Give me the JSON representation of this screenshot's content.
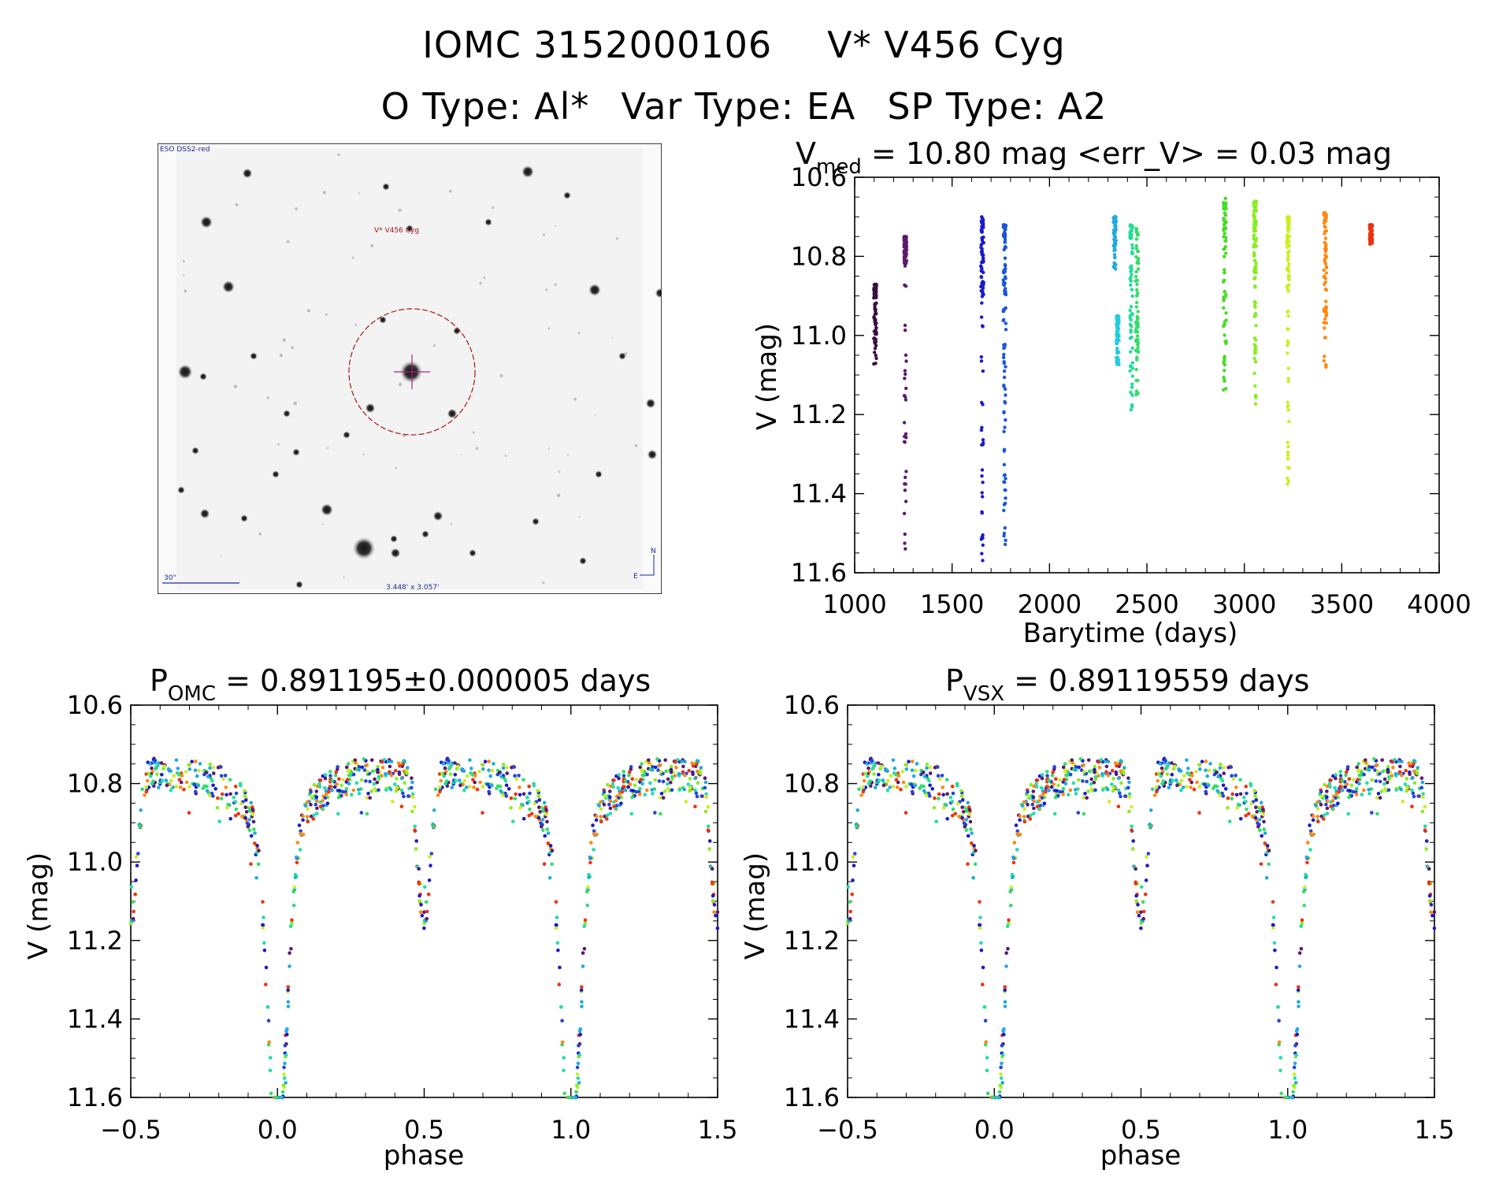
{
  "header": {
    "object_id": "IOMC 3152000106",
    "star_name": "V* V456 Cyg",
    "o_type": "O Type: Al*",
    "var_type": "Var Type: EA",
    "sp_type": "SP Type: A2"
  },
  "finder_chart": {
    "survey_label": "ESO DSS2-red",
    "target_label": "V* V456 Cyg",
    "scale_label": "30\"",
    "field_label": "3.448' x 3.057'",
    "east_label": "E",
    "north_label": "N"
  },
  "chart_data": [
    {
      "id": "lightcurve",
      "type": "scatter",
      "title_main": "V",
      "title_sub": "med",
      "title_rest": " = 10.80 mag <err_V> = 0.03 mag",
      "xlabel": "Barytime (days)",
      "ylabel": "V (mag)",
      "xlim": [
        1000,
        4000
      ],
      "ylim": [
        10.6,
        11.6
      ],
      "y_inverted": true,
      "xticks": [
        "1000",
        "1500",
        "2000",
        "2500",
        "3000",
        "3500",
        "4000"
      ],
      "yticks": [
        "10.6",
        "10.8",
        "11.0",
        "11.2",
        "11.4",
        "11.6"
      ],
      "series": [
        {
          "x": 1105,
          "ymin": 10.87,
          "ymax": 11.08,
          "color": "#3a1040",
          "deep": false
        },
        {
          "x": 1260,
          "ymin": 10.75,
          "ymax": 10.82,
          "color": "#5a1a6e",
          "deep": true,
          "deepmax": 11.57
        },
        {
          "x": 1655,
          "ymin": 10.7,
          "ymax": 10.9,
          "color": "#1a1acc",
          "deep": true,
          "deepmax": 11.59
        },
        {
          "x": 1770,
          "ymin": 10.72,
          "ymax": 11.12,
          "color": "#1a55dd",
          "deep": true,
          "deepmax": 11.53
        },
        {
          "x": 2335,
          "ymin": 10.7,
          "ymax": 10.84,
          "color": "#22aadd",
          "deep": false
        },
        {
          "x": 2350,
          "ymin": 10.95,
          "ymax": 11.08,
          "color": "#22ccdd",
          "deep": false
        },
        {
          "x": 2420,
          "ymin": 10.72,
          "ymax": 11.2,
          "color": "#22dd99",
          "deep": false
        },
        {
          "x": 2450,
          "ymin": 10.73,
          "ymax": 11.15,
          "color": "#33dd66",
          "deep": false
        },
        {
          "x": 2900,
          "ymin": 10.65,
          "ymax": 11.15,
          "color": "#44dd22",
          "deep": false
        },
        {
          "x": 3055,
          "ymin": 10.66,
          "ymax": 10.85,
          "color": "#88ee22",
          "deep": true,
          "deepmax": 11.18
        },
        {
          "x": 3225,
          "ymin": 10.7,
          "ymax": 10.88,
          "color": "#ccee22",
          "deep": true,
          "deepmax": 11.43
        },
        {
          "x": 3415,
          "ymin": 10.69,
          "ymax": 11.09,
          "color": "#ff8811",
          "deep": false
        },
        {
          "x": 3650,
          "ymin": 10.72,
          "ymax": 10.77,
          "color": "#ee3311",
          "deep": false
        }
      ]
    },
    {
      "id": "phase_omc",
      "type": "scatter",
      "title_main": "P",
      "title_sub": "OMC",
      "title_rest": " = 0.891195±0.000005 days",
      "xlabel": "phase",
      "ylabel": "V (mag)",
      "xlim": [
        -0.5,
        1.5
      ],
      "ylim": [
        10.6,
        11.6
      ],
      "y_inverted": true,
      "xticks": [
        "−0.5",
        "0.0",
        "0.5",
        "1.0",
        "1.5"
      ],
      "yticks": [
        "10.6",
        "10.8",
        "11.0",
        "11.2",
        "11.4",
        "11.6"
      ],
      "model": {
        "base": 10.78,
        "primary_depth": 0.82,
        "primary_width": 0.045,
        "secondary_depth": 0.36,
        "secondary_width": 0.03
      }
    },
    {
      "id": "phase_vsx",
      "type": "scatter",
      "title_main": "P",
      "title_sub": "VSX",
      "title_rest": " = 0.89119559 days",
      "xlabel": "phase",
      "ylabel": "V (mag)",
      "xlim": [
        -0.5,
        1.5
      ],
      "ylim": [
        10.6,
        11.6
      ],
      "y_inverted": true,
      "xticks": [
        "−0.5",
        "0.0",
        "0.5",
        "1.0",
        "1.5"
      ],
      "yticks": [
        "10.6",
        "10.8",
        "11.0",
        "11.2",
        "11.4",
        "11.6"
      ],
      "model": {
        "base": 10.78,
        "primary_depth": 0.82,
        "primary_width": 0.045,
        "secondary_depth": 0.36,
        "secondary_width": 0.03
      }
    }
  ],
  "colors": {
    "background": "#ffffff",
    "axes": "#000000",
    "circle": "#aa1111",
    "crosshair": "#aa2288",
    "label_blue": "#1a2a99"
  }
}
